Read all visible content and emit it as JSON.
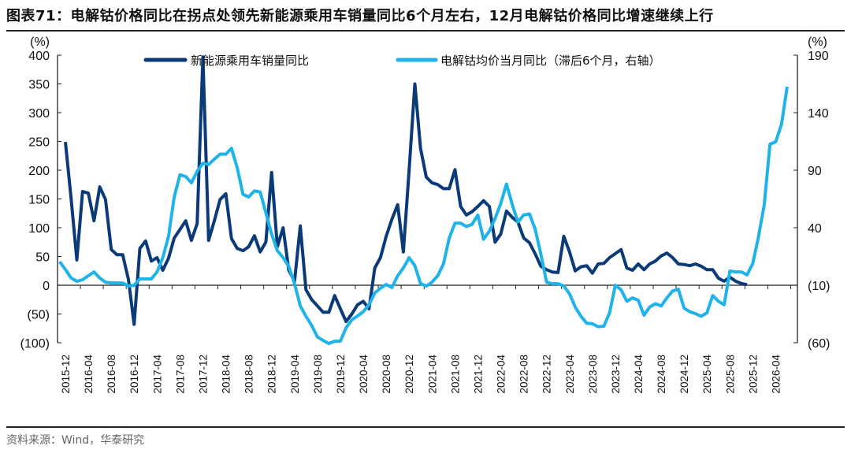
{
  "title": "图表71：电解钴价格同比在拐点处领先新能源乘用车销量同比6个月左右，12月电解钴价格同比增速继续上行",
  "source": "资料来源：Wind，华泰研究",
  "colors": {
    "dark": "#0b3a78",
    "light": "#1fb3ea"
  },
  "chart_data": {
    "type": "line",
    "title": "电解钴价格同比在拐点处领先新能源乘用车销量同比6个月左右",
    "y_left": {
      "label": "(%)",
      "range": [
        -100,
        400
      ],
      "ticks": [
        400,
        350,
        300,
        250,
        200,
        150,
        100,
        50,
        0,
        -50,
        -100
      ],
      "tick_labels": [
        "400",
        "350",
        "300",
        "250",
        "200",
        "150",
        "100",
        "50",
        "0",
        "(50)",
        "(100)"
      ]
    },
    "y_right": {
      "label": "(%)",
      "range": [
        -60,
        190
      ],
      "ticks": [
        190,
        140,
        90,
        40,
        -10,
        -60
      ],
      "tick_labels": [
        "190",
        "140",
        "90",
        "40",
        "(10)",
        "(60)"
      ]
    },
    "x_tick_labels": [
      "2015-12",
      "2016-04",
      "2016-08",
      "2016-12",
      "2017-04",
      "2017-08",
      "2017-12",
      "2018-04",
      "2018-08",
      "2018-12",
      "2019-04",
      "2019-08",
      "2019-12",
      "2020-04",
      "2020-08",
      "2020-12",
      "2021-04",
      "2021-08",
      "2021-12",
      "2022-04",
      "2022-08",
      "2022-12",
      "2023-04",
      "2023-08",
      "2023-12",
      "2024-04",
      "2024-08",
      "2024-12",
      "2025-04",
      "2025-08",
      "2025-12",
      "2026-04"
    ],
    "legend_position": "top",
    "series": [
      {
        "name": "新能源乘用车销量同比",
        "axis": "left",
        "start": "2015-12",
        "values": [
          249,
          150,
          44,
          163,
          160,
          112,
          171,
          149,
          62,
          53,
          53,
          10,
          -68,
          64,
          77,
          42,
          48,
          26,
          47,
          82,
          97,
          112,
          78,
          107,
          397,
          78,
          112,
          149,
          159,
          81,
          64,
          60,
          67,
          86,
          58,
          75,
          196,
          67,
          100,
          26,
          7,
          103,
          -8,
          -25,
          -36,
          -47,
          -47,
          -18,
          -41,
          -63,
          -50,
          -34,
          -28,
          -41,
          30,
          48,
          85,
          115,
          140,
          58,
          200,
          350,
          238,
          188,
          178,
          175,
          168,
          168,
          201,
          137,
          122,
          128,
          137,
          147,
          137,
          75,
          89,
          129,
          118,
          110,
          82,
          74,
          55,
          33,
          27,
          23,
          22,
          85,
          58,
          25,
          32,
          34,
          21,
          37,
          38,
          48,
          55,
          62,
          30,
          26,
          37,
          27,
          37,
          42,
          51,
          56,
          48,
          37,
          36,
          34,
          37,
          33,
          27,
          27,
          12,
          7,
          14,
          7,
          3,
          1
        ]
      },
      {
        "name": "电解钴均价当月同比（滞后6个月，右轴）",
        "axis": "right",
        "start": "2015-11",
        "values": [
          10.5,
          3.7,
          -3.8,
          -6.6,
          -5.2,
          -1.8,
          1.6,
          -3.8,
          -7.3,
          -8,
          -8,
          -8,
          -10.7,
          -10,
          -4.5,
          -4.5,
          -4.5,
          1.6,
          14,
          32.5,
          66.7,
          86,
          84.5,
          79,
          89,
          96,
          95,
          99.6,
          104,
          104,
          109,
          92,
          69,
          66.7,
          72,
          71,
          53,
          34.5,
          20,
          14,
          6.4,
          -8.6,
          -28,
          -37,
          -45,
          -55,
          -58,
          -60.7,
          -58.6,
          -58.6,
          -47,
          -40,
          -36.7,
          -33,
          -27,
          -16.8,
          -12.7,
          -9.3,
          -12,
          -1.8,
          5,
          14,
          7,
          -8.6,
          -10.7,
          -7.3,
          -1.8,
          8.5,
          31,
          44,
          44,
          41,
          43,
          51,
          30,
          37,
          48,
          61,
          78,
          60,
          45,
          51,
          52,
          39,
          17,
          -7.3,
          -8.6,
          -8.6,
          -10.7,
          -17.5,
          -29,
          -37,
          -43,
          -43.5,
          -46,
          -45.6,
          -34,
          -10,
          -14,
          -24,
          -21,
          -23,
          -36,
          -29,
          -26,
          -28,
          -21,
          -15,
          -13.4,
          -30,
          -33,
          -34.7,
          -37,
          -34,
          -19,
          -24,
          -27,
          2.3,
          1.6,
          1.6,
          -1,
          9,
          32.5,
          60,
          112.6,
          114.7,
          130,
          162.6
        ]
      }
    ]
  }
}
